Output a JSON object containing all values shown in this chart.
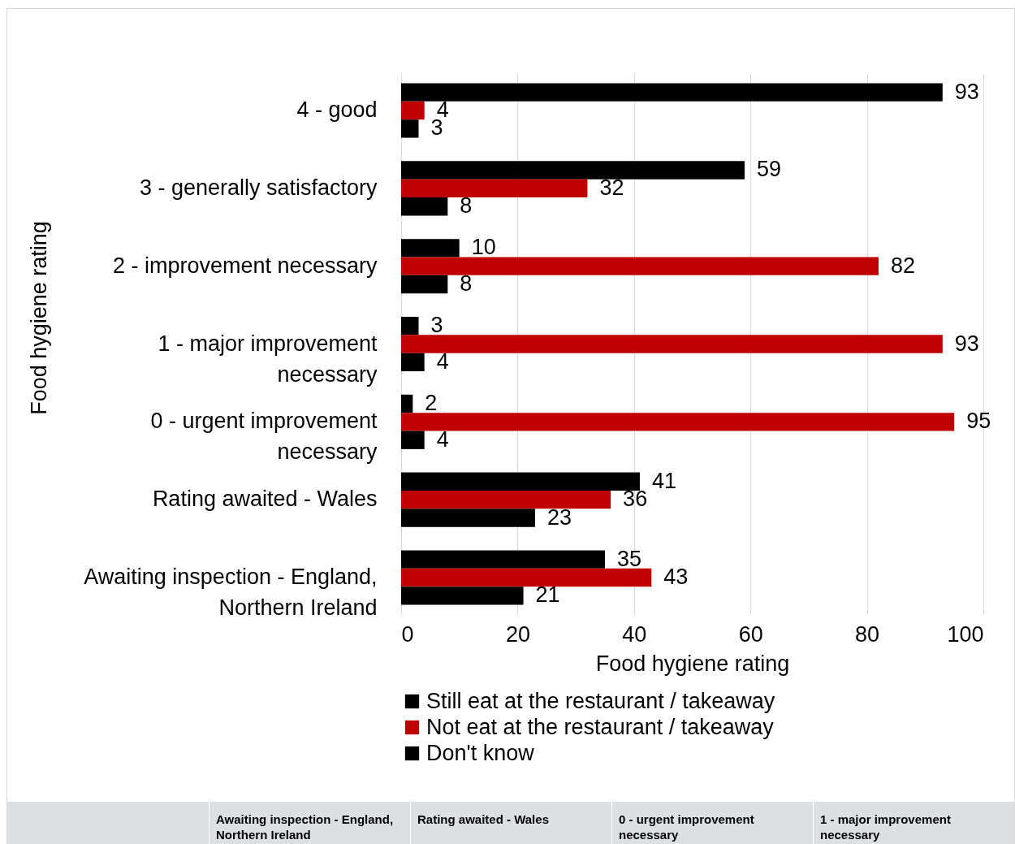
{
  "chart_data": {
    "type": "bar",
    "orientation": "horizontal",
    "xlabel": "Food hygiene rating",
    "ylabel": "Food hygiene rating",
    "categories": [
      "4 - good",
      "3 - generally satisfactory",
      "2 - improvement necessary",
      "1 - major improvement necessary",
      "0 - urgent improvement necessary",
      "Rating awaited - Wales",
      "Awaiting inspection - England, Northern Ireland"
    ],
    "series": [
      {
        "name": "Still eat at the restaurant / takeaway",
        "color": "#000000",
        "values": [
          93,
          59,
          10,
          3,
          2,
          41,
          35
        ]
      },
      {
        "name": "Not eat at the restaurant / takeaway",
        "color": "#c00000",
        "values": [
          4,
          32,
          82,
          93,
          95,
          36,
          43
        ]
      },
      {
        "name": "Don't know",
        "color": "#000000",
        "values": [
          3,
          8,
          8,
          4,
          4,
          23,
          21
        ]
      }
    ],
    "xlim": [
      0,
      100
    ],
    "xticks": [
      0,
      20,
      40,
      60,
      80,
      100
    ],
    "grid": "x",
    "legend": "bottom",
    "data_labels": true,
    "annotations": [
      "Awaiting inspection - England, Northern Ireland",
      "Rating awaited - Wales",
      "0 - urgent improvement necessary",
      "1 - major improvement necessary"
    ]
  }
}
